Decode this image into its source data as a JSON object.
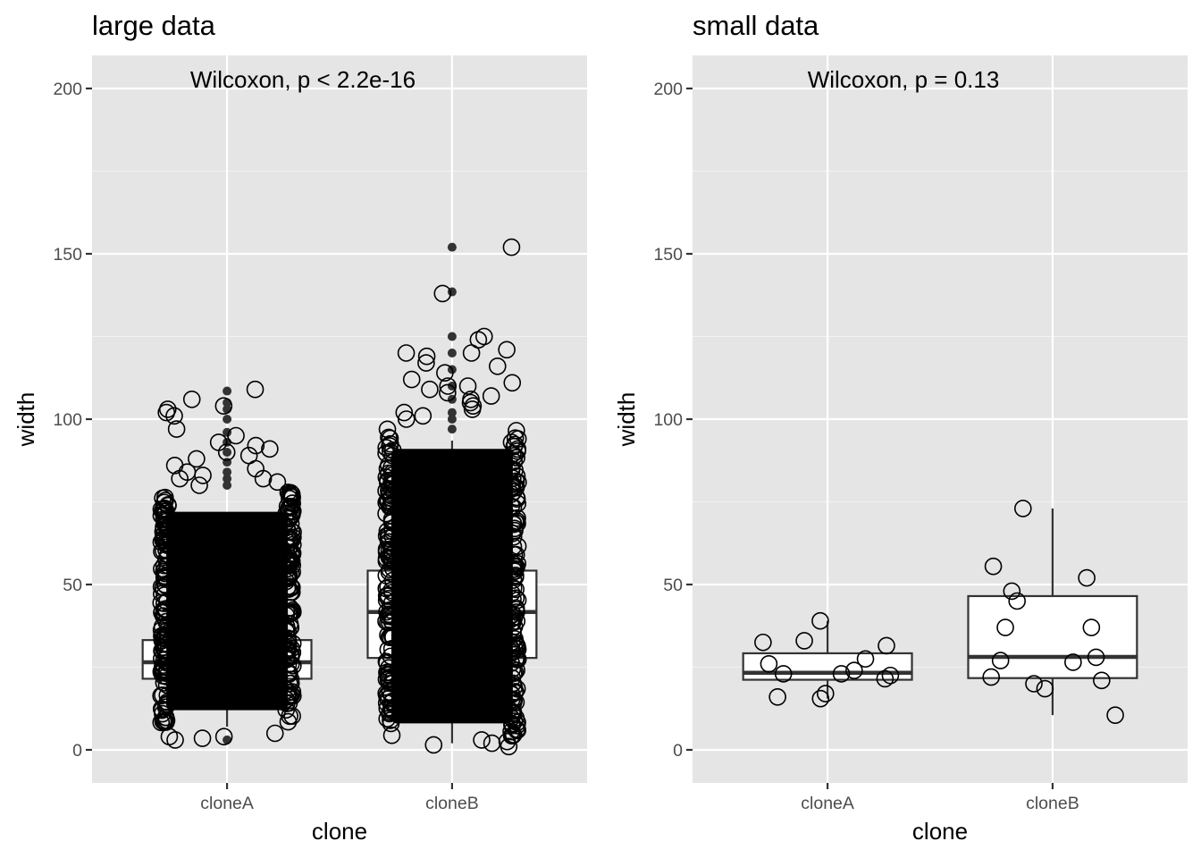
{
  "chart_data": [
    {
      "type": "boxplot",
      "title": "large data",
      "xlabel": "clone",
      "ylabel": "width",
      "ylim": [
        -10,
        210
      ],
      "yticks": [
        0,
        50,
        100,
        150,
        200
      ],
      "categories": [
        "cloneA",
        "cloneB"
      ],
      "annotation": "Wilcoxon, p < 2.2e-16",
      "grid": true,
      "boxes": [
        {
          "category": "cloneA",
          "q1": 21.5,
          "median": 26.5,
          "q3": 33.2,
          "whisker_low": 7,
          "whisker_high": 51,
          "outliers": [
            108.5,
            105,
            103,
            100,
            96,
            93,
            90,
            87,
            84,
            82,
            80,
            3
          ]
        },
        {
          "category": "cloneB",
          "q1": 27.8,
          "median": 41.7,
          "q3": 54.2,
          "whisker_low": 2,
          "whisker_high": 93.5,
          "outliers": [
            152,
            138.5,
            125,
            120,
            115,
            110,
            106,
            102,
            100,
            97
          ]
        }
      ],
      "points": {
        "cloneA": {
          "dense_range": [
            8,
            78
          ],
          "sparse": [
            104,
            106,
            109,
            102,
            103,
            101,
            97,
            95,
            93,
            92,
            91,
            90,
            89,
            88,
            86,
            85,
            84,
            83,
            82,
            82,
            81,
            80,
            3,
            4,
            3.5,
            5,
            4
          ]
        },
        "cloneB": {
          "dense_range": [
            4,
            97
          ],
          "sparse": [
            152,
            138,
            125,
            124,
            121,
            120,
            120,
            119,
            117,
            116,
            114,
            112,
            111,
            110,
            110,
            109,
            108,
            107,
            106,
            105,
            104,
            103,
            102,
            101,
            100,
            2,
            1,
            3,
            2.5,
            1.5
          ]
        }
      }
    },
    {
      "type": "boxplot",
      "title": "small data",
      "xlabel": "clone",
      "ylabel": "width",
      "ylim": [
        -10,
        210
      ],
      "yticks": [
        0,
        50,
        100,
        150,
        200
      ],
      "categories": [
        "cloneA",
        "cloneB"
      ],
      "annotation": "Wilcoxon, p = 0.13",
      "grid": true,
      "boxes": [
        {
          "category": "cloneA",
          "q1": 21.2,
          "median": 23.3,
          "q3": 29.2,
          "whisker_low": 15.5,
          "whisker_high": 39,
          "outliers": []
        },
        {
          "category": "cloneB",
          "q1": 21.7,
          "median": 28.1,
          "q3": 46.5,
          "whisker_low": 10.5,
          "whisker_high": 73,
          "outliers": []
        }
      ],
      "points": {
        "cloneA": [
          39,
          33,
          32.5,
          31.5,
          27.5,
          26,
          24,
          23,
          23,
          22.5,
          21.5,
          17,
          16,
          15.5
        ],
        "cloneB": [
          73,
          55.5,
          52,
          48,
          45,
          37,
          37,
          28,
          27,
          26.5,
          22,
          21,
          20,
          18.5,
          10.5
        ]
      }
    }
  ]
}
